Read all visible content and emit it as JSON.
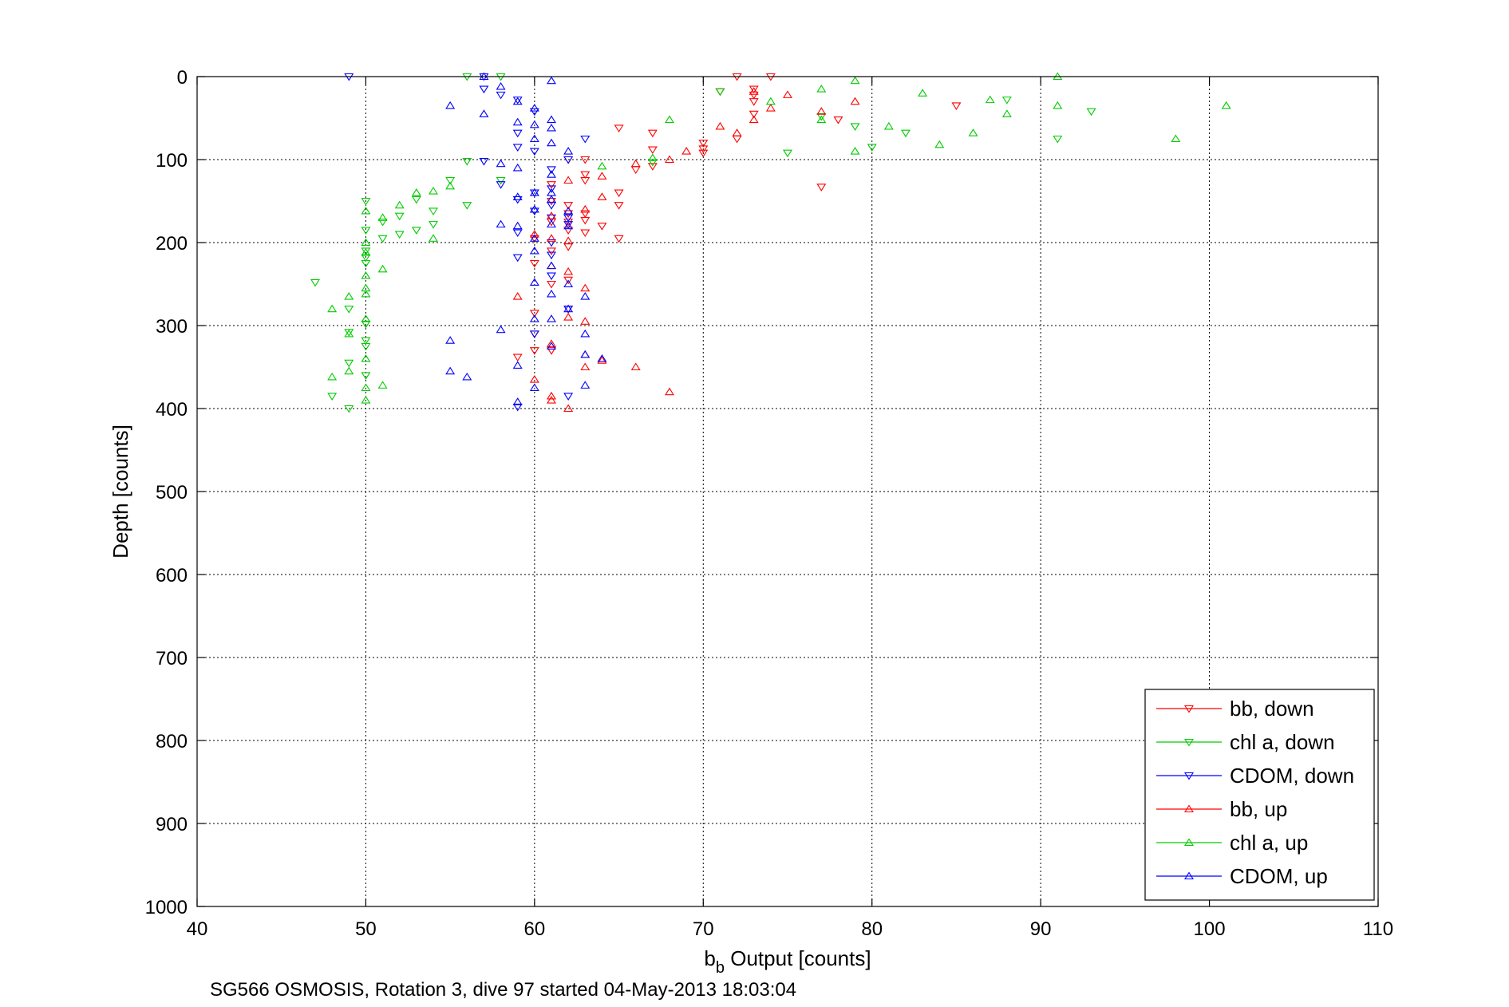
{
  "chart_data": {
    "type": "scatter",
    "xlabel_main": "b",
    "xlabel_sub": "b",
    "xlabel_rest": " Output [counts]",
    "ylabel": "Depth [counts]",
    "caption": "SG566 OSMOSIS, Rotation 3, dive 97 started 04-May-2013 18:03:04",
    "xlim": [
      40,
      110
    ],
    "ylim": [
      0,
      1000
    ],
    "y_reversed": true,
    "grid": true,
    "legend_position": "bottom-right",
    "x_ticks": [
      "40",
      "50",
      "60",
      "70",
      "80",
      "90",
      "100",
      "110"
    ],
    "y_ticks": [
      "0",
      "100",
      "200",
      "300",
      "400",
      "500",
      "600",
      "700",
      "800",
      "900",
      "1000"
    ],
    "series": [
      {
        "name": "bb, down",
        "color": "#ff0000",
        "marker": "triangle-down",
        "points": [
          [
            72,
            0
          ],
          [
            74,
            0
          ],
          [
            73,
            15
          ],
          [
            73,
            22
          ],
          [
            73,
            30
          ],
          [
            73,
            45
          ],
          [
            72,
            75
          ],
          [
            70,
            80
          ],
          [
            70,
            87
          ],
          [
            70,
            92
          ],
          [
            67,
            68
          ],
          [
            67,
            88
          ],
          [
            67,
            108
          ],
          [
            66,
            112
          ],
          [
            65,
            62
          ],
          [
            65,
            140
          ],
          [
            65,
            155
          ],
          [
            65,
            195
          ],
          [
            64,
            180
          ],
          [
            63,
            100
          ],
          [
            63,
            118
          ],
          [
            63,
            125
          ],
          [
            63,
            165
          ],
          [
            63,
            173
          ],
          [
            63,
            188
          ],
          [
            62,
            100
          ],
          [
            62,
            155
          ],
          [
            62,
            165
          ],
          [
            62,
            175
          ],
          [
            62,
            185
          ],
          [
            62,
            205
          ],
          [
            62,
            245
          ],
          [
            62,
            280
          ],
          [
            61,
            130
          ],
          [
            61,
            150
          ],
          [
            61,
            175
          ],
          [
            61,
            210
          ],
          [
            61,
            250
          ],
          [
            61,
            330
          ],
          [
            60,
            195
          ],
          [
            60,
            225
          ],
          [
            60,
            285
          ],
          [
            60,
            310
          ],
          [
            60,
            330
          ],
          [
            59,
            338
          ],
          [
            77,
            133
          ],
          [
            78,
            52
          ],
          [
            85,
            35
          ],
          [
            71,
            18
          ]
        ]
      },
      {
        "name": "chl a, down",
        "color": "#00cc00",
        "marker": "triangle-down",
        "points": [
          [
            56,
            0
          ],
          [
            58,
            0
          ],
          [
            71,
            18
          ],
          [
            75,
            92
          ],
          [
            77,
            48
          ],
          [
            79,
            60
          ],
          [
            80,
            85
          ],
          [
            82,
            68
          ],
          [
            88,
            28
          ],
          [
            91,
            75
          ],
          [
            93,
            42
          ],
          [
            58,
            125
          ],
          [
            56,
            155
          ],
          [
            54,
            162
          ],
          [
            54,
            178
          ],
          [
            53,
            148
          ],
          [
            53,
            185
          ],
          [
            52,
            168
          ],
          [
            52,
            190
          ],
          [
            51,
            175
          ],
          [
            51,
            195
          ],
          [
            50,
            150
          ],
          [
            50,
            185
          ],
          [
            50,
            210
          ],
          [
            50,
            218
          ],
          [
            50,
            225
          ],
          [
            50,
            298
          ],
          [
            50,
            318
          ],
          [
            50,
            325
          ],
          [
            50,
            360
          ],
          [
            49,
            280
          ],
          [
            49,
            308
          ],
          [
            49,
            345
          ],
          [
            49,
            400
          ],
          [
            48,
            385
          ],
          [
            47,
            248
          ],
          [
            55,
            125
          ],
          [
            56,
            102
          ],
          [
            67,
            103
          ]
        ]
      },
      {
        "name": "CDOM, down",
        "color": "#0000ff",
        "marker": "triangle-down",
        "points": [
          [
            49,
            0
          ],
          [
            57,
            0
          ],
          [
            57,
            15
          ],
          [
            58,
            22
          ],
          [
            59,
            28
          ],
          [
            59,
            68
          ],
          [
            59,
            85
          ],
          [
            59,
            148
          ],
          [
            59,
            188
          ],
          [
            59,
            218
          ],
          [
            60,
            42
          ],
          [
            60,
            90
          ],
          [
            60,
            140
          ],
          [
            60,
            162
          ],
          [
            61,
            112
          ],
          [
            61,
            135
          ],
          [
            61,
            155
          ],
          [
            61,
            170
          ],
          [
            61,
            200
          ],
          [
            61,
            215
          ],
          [
            61,
            240
          ],
          [
            62,
            100
          ],
          [
            62,
            170
          ],
          [
            62,
            178
          ],
          [
            62,
            280
          ],
          [
            63,
            75
          ],
          [
            57,
            102
          ],
          [
            58,
            130
          ],
          [
            60,
            310
          ],
          [
            59,
            398
          ],
          [
            62,
            385
          ]
        ]
      },
      {
        "name": "bb, up",
        "color": "#ff0000",
        "marker": "triangle-up",
        "points": [
          [
            72,
            68
          ],
          [
            73,
            52
          ],
          [
            73,
            18
          ],
          [
            74,
            38
          ],
          [
            75,
            22
          ],
          [
            79,
            30
          ],
          [
            77,
            42
          ],
          [
            71,
            60
          ],
          [
            69,
            90
          ],
          [
            68,
            100
          ],
          [
            66,
            105
          ],
          [
            64,
            120
          ],
          [
            64,
            145
          ],
          [
            63,
            160
          ],
          [
            63,
            255
          ],
          [
            63,
            295
          ],
          [
            63,
            335
          ],
          [
            64,
            342
          ],
          [
            66,
            350
          ],
          [
            68,
            380
          ],
          [
            62,
            290
          ],
          [
            62,
            235
          ],
          [
            62,
            198
          ],
          [
            61,
            228
          ],
          [
            61,
            195
          ],
          [
            61,
            168
          ],
          [
            61,
            390
          ],
          [
            62,
            400
          ],
          [
            61,
            385
          ],
          [
            60,
            365
          ],
          [
            59,
            265
          ],
          [
            60,
            190
          ],
          [
            61,
            322
          ],
          [
            62,
            125
          ],
          [
            63,
            350
          ]
        ]
      },
      {
        "name": "chl a, up",
        "color": "#00cc00",
        "marker": "triangle-up",
        "points": [
          [
            91,
            0
          ],
          [
            91,
            35
          ],
          [
            88,
            45
          ],
          [
            87,
            28
          ],
          [
            86,
            68
          ],
          [
            84,
            82
          ],
          [
            81,
            60
          ],
          [
            83,
            20
          ],
          [
            79,
            5
          ],
          [
            79,
            90
          ],
          [
            77,
            15
          ],
          [
            77,
            52
          ],
          [
            74,
            30
          ],
          [
            68,
            52
          ],
          [
            67,
            98
          ],
          [
            64,
            108
          ],
          [
            55,
            132
          ],
          [
            54,
            138
          ],
          [
            54,
            195
          ],
          [
            53,
            140
          ],
          [
            52,
            155
          ],
          [
            51,
            170
          ],
          [
            51,
            232
          ],
          [
            51,
            372
          ],
          [
            50,
            162
          ],
          [
            50,
            200
          ],
          [
            50,
            212
          ],
          [
            50,
            240
          ],
          [
            50,
            255
          ],
          [
            50,
            262
          ],
          [
            50,
            292
          ],
          [
            50,
            340
          ],
          [
            50,
            375
          ],
          [
            50,
            390
          ],
          [
            49,
            265
          ],
          [
            49,
            310
          ],
          [
            49,
            355
          ],
          [
            48,
            280
          ],
          [
            48,
            362
          ],
          [
            101,
            35
          ],
          [
            98,
            75
          ]
        ]
      },
      {
        "name": "CDOM, up",
        "color": "#0000ff",
        "marker": "triangle-up",
        "points": [
          [
            57,
            0
          ],
          [
            61,
            5
          ],
          [
            55,
            35
          ],
          [
            57,
            45
          ],
          [
            58,
            12
          ],
          [
            59,
            30
          ],
          [
            59,
            55
          ],
          [
            59,
            110
          ],
          [
            59,
            145
          ],
          [
            59,
            180
          ],
          [
            59,
            348
          ],
          [
            59,
            392
          ],
          [
            60,
            38
          ],
          [
            60,
            58
          ],
          [
            60,
            75
          ],
          [
            60,
            140
          ],
          [
            60,
            160
          ],
          [
            60,
            195
          ],
          [
            60,
            210
          ],
          [
            60,
            248
          ],
          [
            60,
            292
          ],
          [
            60,
            375
          ],
          [
            61,
            52
          ],
          [
            61,
            62
          ],
          [
            61,
            80
          ],
          [
            61,
            118
          ],
          [
            61,
            140
          ],
          [
            61,
            148
          ],
          [
            61,
            178
          ],
          [
            61,
            228
          ],
          [
            61,
            262
          ],
          [
            61,
            292
          ],
          [
            61,
            325
          ],
          [
            62,
            90
          ],
          [
            62,
            162
          ],
          [
            62,
            180
          ],
          [
            62,
            250
          ],
          [
            62,
            280
          ],
          [
            63,
            265
          ],
          [
            63,
            310
          ],
          [
            63,
            335
          ],
          [
            63,
            372
          ],
          [
            64,
            340
          ],
          [
            58,
            105
          ],
          [
            58,
            178
          ],
          [
            58,
            305
          ],
          [
            56,
            362
          ],
          [
            55,
            318
          ],
          [
            55,
            355
          ]
        ]
      }
    ]
  }
}
